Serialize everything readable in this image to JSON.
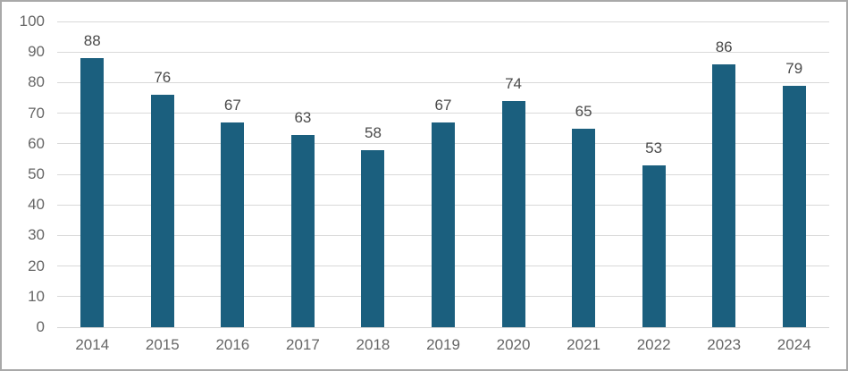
{
  "chart_data": {
    "type": "bar",
    "title": "",
    "xlabel": "",
    "ylabel": "",
    "categories": [
      "2014",
      "2015",
      "2016",
      "2017",
      "2018",
      "2019",
      "2020",
      "2021",
      "2022",
      "2023",
      "2024"
    ],
    "values": [
      88,
      76,
      67,
      63,
      58,
      67,
      74,
      65,
      53,
      86,
      79
    ],
    "ylim": [
      0,
      100
    ],
    "ytick_step": 10,
    "ytick_labels": [
      "0",
      "10",
      "20",
      "30",
      "40",
      "50",
      "60",
      "70",
      "80",
      "90",
      "100"
    ],
    "grid": true,
    "legend_position": "none",
    "data_labels_shown": true,
    "colors": {
      "bar_fill": "#1B5F7E",
      "gridline": "#D9D9D9",
      "axis_line": "#D4D4D4",
      "tick_label": "#666666",
      "data_label": "#4A4A4A",
      "background": "#FFFFFF",
      "frame_border": "#A9A9A9"
    }
  }
}
